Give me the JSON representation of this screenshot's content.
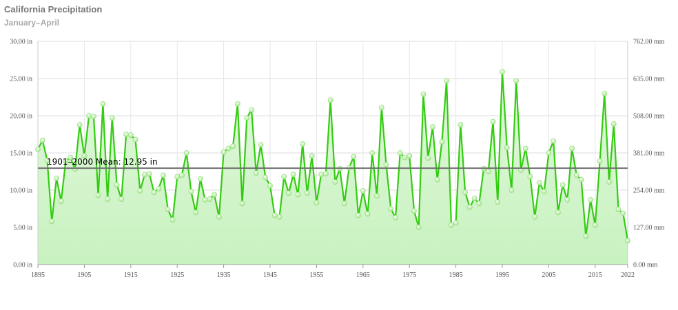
{
  "header": {
    "title": "California Precipitation",
    "subtitle": "January–April"
  },
  "chart_data": {
    "type": "line",
    "title": "California Precipitation",
    "subtitle": "January–April",
    "x_ticks": [
      "1895",
      "1905",
      "1915",
      "1925",
      "1935",
      "1945",
      "1955",
      "1965",
      "1975",
      "1985",
      "1995",
      "2005",
      "2015",
      "2022"
    ],
    "x_tick_years": [
      1895,
      1905,
      1915,
      1925,
      1935,
      1945,
      1955,
      1965,
      1975,
      1985,
      1995,
      2005,
      2015,
      2022
    ],
    "xlim": [
      1895,
      2022
    ],
    "ylim": [
      0,
      30
    ],
    "y_ticks_left": [
      "0.00 in",
      "5.00 in",
      "10.00 in",
      "15.00 in",
      "20.00 in",
      "25.00 in",
      "30.00 in"
    ],
    "y_ticks_right": [
      "0.00 mm",
      "127.00 mm",
      "254.00 mm",
      "381.00 mm",
      "508.00 mm",
      "635.00 mm",
      "762.00 mm"
    ],
    "mean_line": {
      "label": "1901–2000 Mean: 12.95 in",
      "value": 12.95
    },
    "grid": true,
    "line_color": "#33cc11",
    "fill_color": "#c8f2c0",
    "marker_color": "#a8e890",
    "mean_color": "#707070",
    "series": [
      {
        "x": [
          1895,
          1896,
          1897,
          1898,
          1899,
          1900,
          1901,
          1902,
          1903,
          1904,
          1905,
          1906,
          1907,
          1908,
          1909,
          1910,
          1911,
          1912,
          1913,
          1914,
          1915,
          1916,
          1917,
          1918,
          1919,
          1920,
          1921,
          1922,
          1923,
          1924,
          1925,
          1926,
          1927,
          1928,
          1929,
          1930,
          1931,
          1932,
          1933,
          1934,
          1935,
          1936,
          1937,
          1938,
          1939,
          1940,
          1941,
          1942,
          1943,
          1944,
          1945,
          1946,
          1947,
          1948,
          1949,
          1950,
          1951,
          1952,
          1953,
          1954,
          1955,
          1956,
          1957,
          1958,
          1959,
          1960,
          1961,
          1962,
          1963,
          1964,
          1965,
          1966,
          1967,
          1968,
          1969,
          1970,
          1971,
          1972,
          1973,
          1974,
          1975,
          1976,
          1977,
          1978,
          1979,
          1980,
          1981,
          1982,
          1983,
          1984,
          1985,
          1986,
          1987,
          1988,
          1989,
          1990,
          1991,
          1992,
          1993,
          1994,
          1995,
          1996,
          1997,
          1998,
          1999,
          2000,
          2001,
          2002,
          2003,
          2004,
          2005,
          2006,
          2007,
          2008,
          2009,
          2010,
          2011,
          2012,
          2013,
          2014,
          2015,
          2016,
          2017,
          2018,
          2019,
          2020,
          2021,
          2022
        ],
        "values": [
          15.5,
          16.7,
          14.0,
          5.8,
          11.6,
          8.5,
          13.9,
          14.4,
          12.8,
          18.8,
          14.6,
          20.0,
          19.9,
          9.3,
          21.6,
          8.8,
          19.7,
          10.7,
          8.8,
          17.5,
          17.4,
          16.8,
          9.9,
          12.1,
          12.2,
          9.7,
          10.2,
          12.0,
          7.4,
          6.0,
          11.8,
          12.0,
          15.0,
          9.8,
          7.0,
          11.5,
          8.7,
          8.8,
          9.4,
          6.4,
          15.1,
          15.6,
          15.9,
          21.6,
          8.2,
          19.7,
          20.8,
          12.3,
          16.1,
          11.7,
          10.6,
          6.6,
          6.4,
          11.8,
          9.6,
          12.1,
          9.4,
          16.2,
          9.6,
          14.6,
          8.3,
          12.1,
          12.2,
          22.1,
          11.1,
          12.9,
          8.2,
          13.0,
          14.5,
          6.6,
          9.9,
          6.8,
          15.0,
          9.2,
          21.1,
          13.4,
          7.5,
          6.3,
          15.0,
          14.4,
          14.6,
          7.2,
          5.0,
          22.9,
          14.3,
          18.5,
          11.4,
          16.5,
          24.7,
          5.3,
          5.6,
          18.8,
          9.7,
          7.7,
          8.9,
          8.2,
          12.9,
          12.5,
          19.2,
          8.4,
          25.9,
          15.7,
          10.0,
          24.7,
          12.7,
          15.6,
          11.8,
          6.4,
          11.0,
          9.8,
          15.0,
          16.6,
          7.0,
          10.7,
          8.7,
          15.6,
          12.0,
          11.4,
          3.8,
          8.7,
          5.3,
          13.9,
          23.0,
          11.1,
          18.9,
          7.4,
          6.9,
          3.2
        ]
      }
    ]
  }
}
